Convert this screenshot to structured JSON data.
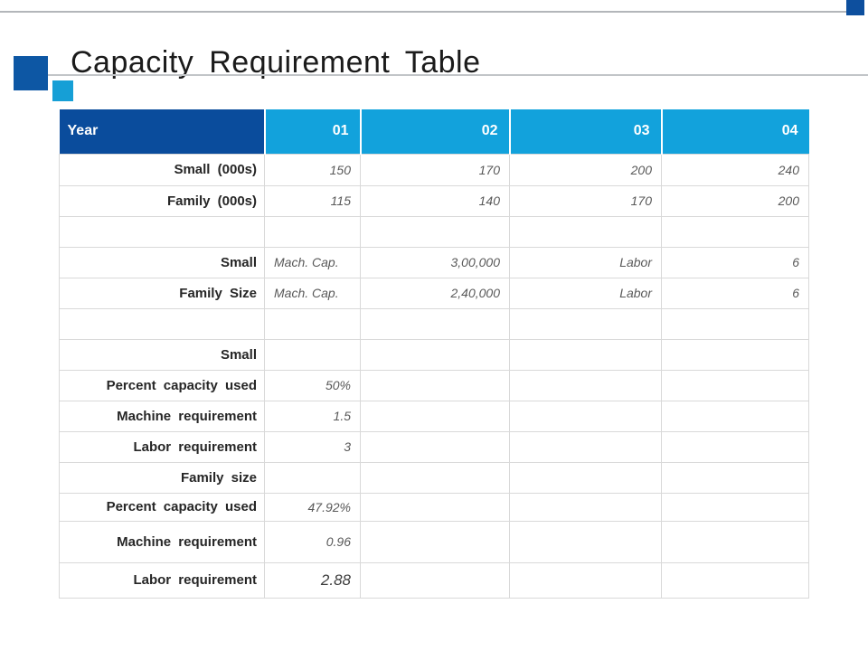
{
  "title": "Capacity Requirement Table",
  "colors": {
    "header_dark_blue": "#0a4c9c",
    "header_light_blue": "#12a2dc",
    "accent_square_dark": "#0d57a4",
    "accent_square_cyan": "#169fd6",
    "label_text": "#262626",
    "value_text": "#595959",
    "gridline": "#d9d9d9"
  },
  "table": {
    "header": [
      "Year",
      "01",
      "02",
      "03",
      "04"
    ],
    "rows": [
      {
        "cells": [
          {
            "t": "Small (000s)",
            "k": "label"
          },
          {
            "t": "150",
            "k": "val"
          },
          {
            "t": "170",
            "k": "val"
          },
          {
            "t": "200",
            "k": "val"
          },
          {
            "t": "240",
            "k": "val"
          }
        ]
      },
      {
        "cells": [
          {
            "t": "Family (000s)",
            "k": "label"
          },
          {
            "t": "115",
            "k": "val"
          },
          {
            "t": "140",
            "k": "val"
          },
          {
            "t": "170",
            "k": "val"
          },
          {
            "t": "200",
            "k": "val"
          }
        ]
      },
      {
        "cells": [
          {
            "t": "",
            "k": "empty"
          },
          {
            "t": "",
            "k": "empty"
          },
          {
            "t": "",
            "k": "empty"
          },
          {
            "t": "",
            "k": "empty"
          },
          {
            "t": "",
            "k": "empty"
          }
        ]
      },
      {
        "cells": [
          {
            "t": "Small",
            "k": "label"
          },
          {
            "t": "Mach. Cap.",
            "k": "val-left"
          },
          {
            "t": "3,00,000",
            "k": "val"
          },
          {
            "t": "Labor",
            "k": "val"
          },
          {
            "t": "6",
            "k": "val"
          }
        ]
      },
      {
        "cells": [
          {
            "t": "Family Size",
            "k": "label"
          },
          {
            "t": "Mach. Cap.",
            "k": "val-left"
          },
          {
            "t": "2,40,000",
            "k": "val"
          },
          {
            "t": "Labor",
            "k": "val"
          },
          {
            "t": "6",
            "k": "val"
          }
        ]
      },
      {
        "cells": [
          {
            "t": "",
            "k": "empty"
          },
          {
            "t": "",
            "k": "empty"
          },
          {
            "t": "",
            "k": "empty"
          },
          {
            "t": "",
            "k": "empty"
          },
          {
            "t": "",
            "k": "empty"
          }
        ]
      },
      {
        "cells": [
          {
            "t": "Small",
            "k": "label"
          },
          {
            "t": "",
            "k": "empty"
          },
          {
            "t": "",
            "k": "empty"
          },
          {
            "t": "",
            "k": "empty"
          },
          {
            "t": "",
            "k": "empty"
          }
        ]
      },
      {
        "cells": [
          {
            "t": "Percent capacity used",
            "k": "label"
          },
          {
            "t": "50%",
            "k": "val"
          },
          {
            "t": "",
            "k": "empty"
          },
          {
            "t": "",
            "k": "empty"
          },
          {
            "t": "",
            "k": "empty"
          }
        ]
      },
      {
        "cells": [
          {
            "t": "Machine requirement",
            "k": "label"
          },
          {
            "t": "1.5",
            "k": "val"
          },
          {
            "t": "",
            "k": "empty"
          },
          {
            "t": "",
            "k": "empty"
          },
          {
            "t": "",
            "k": "empty"
          }
        ]
      },
      {
        "cells": [
          {
            "t": "Labor requirement",
            "k": "label"
          },
          {
            "t": "3",
            "k": "val"
          },
          {
            "t": "",
            "k": "empty"
          },
          {
            "t": "",
            "k": "empty"
          },
          {
            "t": "",
            "k": "empty"
          }
        ]
      },
      {
        "cells": [
          {
            "t": "Family size",
            "k": "label"
          },
          {
            "t": "",
            "k": "empty"
          },
          {
            "t": "",
            "k": "empty"
          },
          {
            "t": "",
            "k": "empty"
          },
          {
            "t": "",
            "k": "empty"
          }
        ]
      },
      {
        "cells": [
          {
            "t": "Percent capacity used",
            "k": "label"
          },
          {
            "t": "47.92%",
            "k": "val"
          },
          {
            "t": "",
            "k": "empty"
          },
          {
            "t": "",
            "k": "empty"
          },
          {
            "t": "",
            "k": "empty"
          }
        ]
      },
      {
        "cells": [
          {
            "t": "Machine requirement",
            "k": "label"
          },
          {
            "t": "0.96",
            "k": "val"
          },
          {
            "t": "",
            "k": "empty"
          },
          {
            "t": "",
            "k": "empty"
          },
          {
            "t": "",
            "k": "empty"
          }
        ]
      },
      {
        "cells": [
          {
            "t": "Labor requirement",
            "k": "label"
          },
          {
            "t": "2.88",
            "k": "val-lg"
          },
          {
            "t": "",
            "k": "empty"
          },
          {
            "t": "",
            "k": "empty"
          },
          {
            "t": "",
            "k": "empty"
          }
        ]
      }
    ]
  }
}
